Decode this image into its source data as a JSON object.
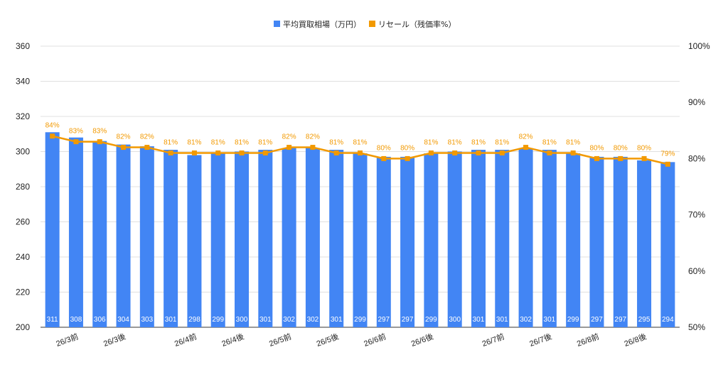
{
  "chart_data": {
    "type": "bar",
    "legend_position": "top",
    "grid": true,
    "series": [
      {
        "name": "平均買取相場（万円）",
        "type": "bar",
        "color": "#4285f4",
        "axis": "left",
        "values": [
          311,
          308,
          306,
          304,
          303,
          301,
          298,
          299,
          300,
          301,
          302,
          302,
          301,
          299,
          297,
          297,
          299,
          300,
          301,
          301,
          302,
          301,
          299,
          297,
          297,
          295,
          294
        ],
        "labels": [
          "311",
          "308",
          "306",
          "304",
          "303",
          "301",
          "298",
          "299",
          "300",
          "301",
          "302",
          "302",
          "301",
          "299",
          "297",
          "297",
          "299",
          "300",
          "301",
          "301",
          "302",
          "301",
          "299",
          "297",
          "297",
          "295",
          "294"
        ]
      },
      {
        "name": "リセール（残価率%）",
        "type": "line",
        "color": "#f29900",
        "axis": "right",
        "values": [
          84,
          83,
          83,
          82,
          82,
          81,
          81,
          81,
          81,
          81,
          82,
          82,
          81,
          81,
          80,
          80,
          81,
          81,
          81,
          81,
          82,
          81,
          81,
          80,
          80,
          80,
          79
        ],
        "labels": [
          "84%",
          "83%",
          "83%",
          "82%",
          "82%",
          "81%",
          "81%",
          "81%",
          "81%",
          "81%",
          "82%",
          "82%",
          "81%",
          "81%",
          "80%",
          "80%",
          "81%",
          "81%",
          "81%",
          "81%",
          "82%",
          "81%",
          "81%",
          "80%",
          "80%",
          "80%",
          "79%"
        ]
      }
    ],
    "x_ticks": [
      {
        "index": 1,
        "label": "26/3前"
      },
      {
        "index": 3,
        "label": "26/3後"
      },
      {
        "index": 6,
        "label": "26/4前"
      },
      {
        "index": 8,
        "label": "26/4後"
      },
      {
        "index": 10,
        "label": "26/5前"
      },
      {
        "index": 12,
        "label": "26/5後"
      },
      {
        "index": 14,
        "label": "26/6前"
      },
      {
        "index": 16,
        "label": "26/6後"
      },
      {
        "index": 19,
        "label": "26/7前"
      },
      {
        "index": 21,
        "label": "26/7後"
      },
      {
        "index": 23,
        "label": "26/8前"
      },
      {
        "index": 25,
        "label": "26/8後"
      }
    ],
    "left_axis": {
      "ylim": [
        200,
        360
      ],
      "ticks": [
        200,
        220,
        240,
        260,
        280,
        300,
        320,
        340,
        360
      ],
      "tick_labels": [
        "200",
        "220",
        "240",
        "260",
        "280",
        "300",
        "320",
        "340",
        "360"
      ]
    },
    "right_axis": {
      "ylim": [
        50,
        100
      ],
      "ticks": [
        50,
        60,
        70,
        80,
        90,
        100
      ],
      "tick_labels": [
        "50%",
        "60%",
        "70%",
        "80%",
        "90%",
        "100%"
      ]
    }
  }
}
